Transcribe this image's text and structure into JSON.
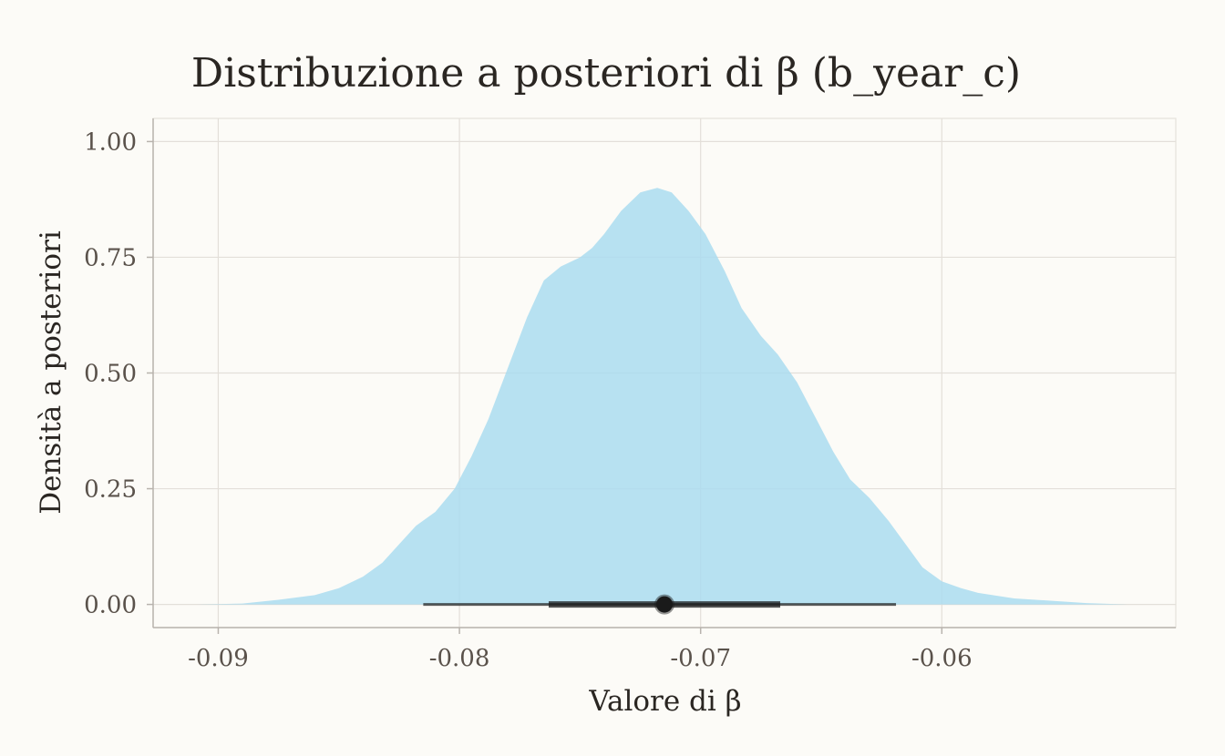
{
  "chart_data": {
    "type": "area",
    "title": "Distribuzione a posteriori di β (b_year_c)",
    "xlabel": "Valore di β",
    "ylabel": "Densità a posteriori",
    "xlim": [
      -0.0927,
      -0.0503
    ],
    "ylim": [
      -0.05,
      1.05
    ],
    "x_ticks": [
      -0.09,
      -0.08,
      -0.07,
      -0.06
    ],
    "x_tick_labels": [
      "-0.09",
      "-0.08",
      "-0.07",
      "-0.06"
    ],
    "y_ticks": [
      0,
      0.25,
      0.5,
      0.75,
      1.0
    ],
    "y_tick_labels": [
      "0.00",
      "0.25",
      "0.50",
      "0.75",
      "1.00"
    ],
    "grid": true,
    "fill_color": "#aadcf0",
    "interval_color": "#1a1a1a",
    "density": {
      "x": [
        -0.0909,
        -0.089,
        -0.0875,
        -0.086,
        -0.085,
        -0.084,
        -0.0832,
        -0.0825,
        -0.0818,
        -0.081,
        -0.0802,
        -0.0795,
        -0.0788,
        -0.078,
        -0.0772,
        -0.0765,
        -0.0758,
        -0.075,
        -0.0745,
        -0.074,
        -0.0733,
        -0.0725,
        -0.0718,
        -0.0712,
        -0.0705,
        -0.0698,
        -0.069,
        -0.0683,
        -0.0675,
        -0.0668,
        -0.066,
        -0.0652,
        -0.0645,
        -0.0638,
        -0.063,
        -0.0622,
        -0.0615,
        -0.0608,
        -0.06,
        -0.0592,
        -0.0585,
        -0.057,
        -0.0555,
        -0.054,
        -0.0523
      ],
      "y": [
        0.0,
        0.002,
        0.01,
        0.02,
        0.035,
        0.06,
        0.09,
        0.13,
        0.17,
        0.2,
        0.25,
        0.32,
        0.4,
        0.51,
        0.62,
        0.7,
        0.73,
        0.75,
        0.77,
        0.8,
        0.85,
        0.89,
        0.9,
        0.89,
        0.85,
        0.8,
        0.72,
        0.64,
        0.58,
        0.54,
        0.48,
        0.4,
        0.33,
        0.27,
        0.23,
        0.18,
        0.13,
        0.08,
        0.05,
        0.035,
        0.025,
        0.013,
        0.008,
        0.003,
        0.0
      ]
    },
    "median": -0.0715,
    "interval_thick": [
      -0.0763,
      -0.0667
    ],
    "interval_thin": [
      -0.0815,
      -0.0619
    ]
  }
}
